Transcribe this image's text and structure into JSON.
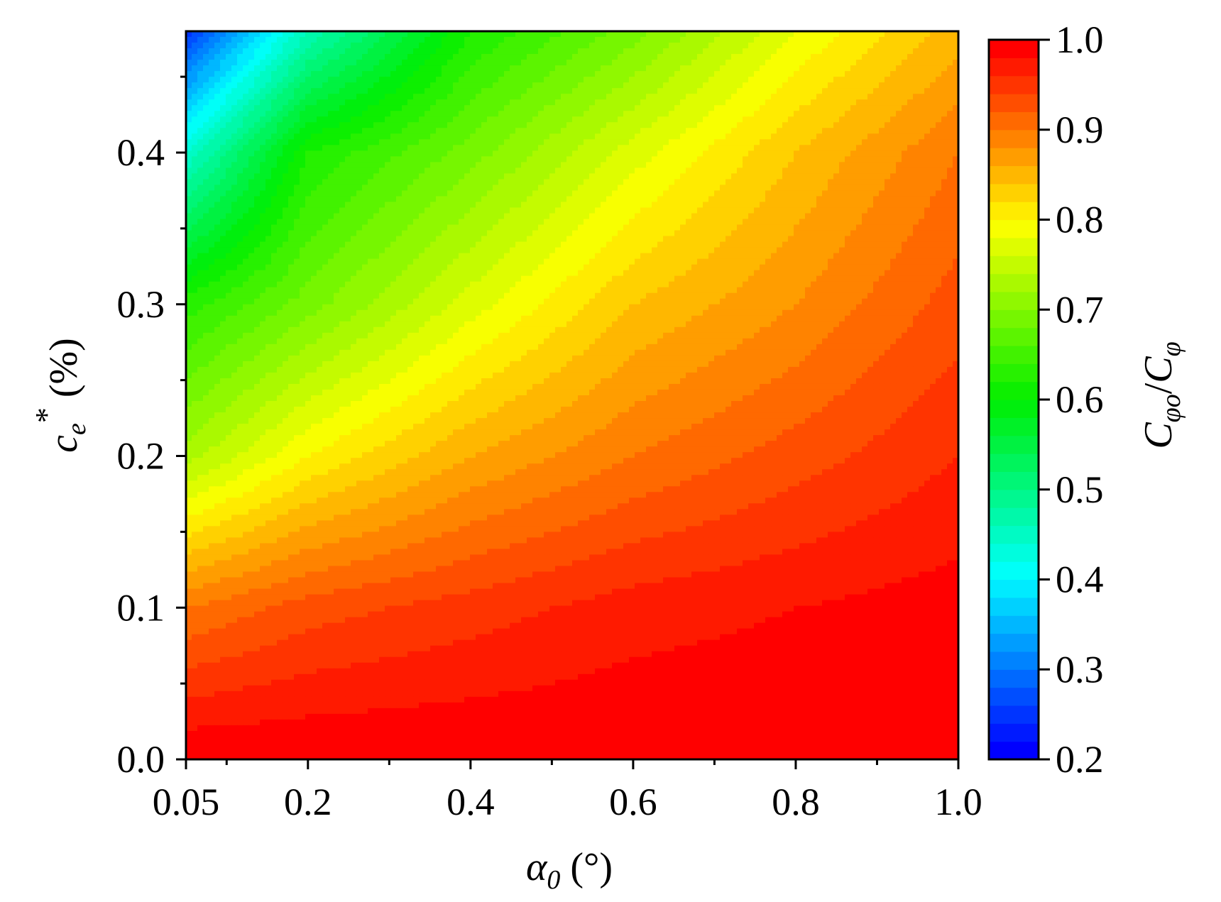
{
  "chart_data": {
    "type": "heatmap",
    "subtype": "filled-contour",
    "title": "",
    "x_axis": {
      "range": [
        0.05,
        1.0
      ],
      "ticks": [
        0.05,
        0.2,
        0.4,
        0.6,
        0.8,
        1.0
      ],
      "tick_labels": [
        "0.05",
        "0.2",
        "0.4",
        "0.6",
        "0.8",
        "1.0"
      ],
      "minor_ticks": [
        0.1,
        0.3,
        0.5,
        0.7,
        0.9
      ],
      "label_symbol": "α",
      "label_sub": "0",
      "label_unit": " (°)"
    },
    "y_axis": {
      "range": [
        0.0,
        0.48
      ],
      "ticks": [
        0.0,
        0.1,
        0.2,
        0.3,
        0.4
      ],
      "tick_labels": [
        "0.0",
        "0.1",
        "0.2",
        "0.3",
        "0.4"
      ],
      "minor_ticks": [
        0.05,
        0.15,
        0.25,
        0.35,
        0.45
      ],
      "label_symbol": "c",
      "label_sub": "e",
      "label_sup": "*",
      "label_unit": " (%)"
    },
    "colorbar": {
      "range": [
        0.2,
        1.0
      ],
      "ticks": [
        0.2,
        0.3,
        0.4,
        0.5,
        0.6,
        0.7,
        0.8,
        0.9,
        1.0
      ],
      "tick_labels": [
        "0.2",
        "0.3",
        "0.4",
        "0.5",
        "0.6",
        "0.7",
        "0.8",
        "0.9",
        "1.0"
      ],
      "levels": 40,
      "colormap": "rainbow (blue–cyan–green–yellow–red)",
      "label_main_1": "C",
      "label_sub_1": "φo",
      "label_slash": "/",
      "label_main_2": "C",
      "label_sub_2": "φ"
    },
    "x_grid": [
      0.05,
      0.2,
      0.4,
      0.6,
      0.8,
      1.0
    ],
    "y_grid": [
      0.0,
      0.1,
      0.2,
      0.3,
      0.4,
      0.48
    ],
    "z": [
      [
        1.0,
        1.0,
        1.0,
        1.0,
        1.0,
        1.0
      ],
      [
        0.9,
        0.93,
        0.95,
        0.97,
        0.98,
        0.99
      ],
      [
        0.73,
        0.8,
        0.86,
        0.9,
        0.93,
        0.96
      ],
      [
        0.63,
        0.69,
        0.77,
        0.84,
        0.88,
        0.93
      ],
      [
        0.44,
        0.62,
        0.69,
        0.77,
        0.84,
        0.9
      ],
      [
        0.25,
        0.46,
        0.62,
        0.69,
        0.78,
        0.85
      ]
    ]
  }
}
